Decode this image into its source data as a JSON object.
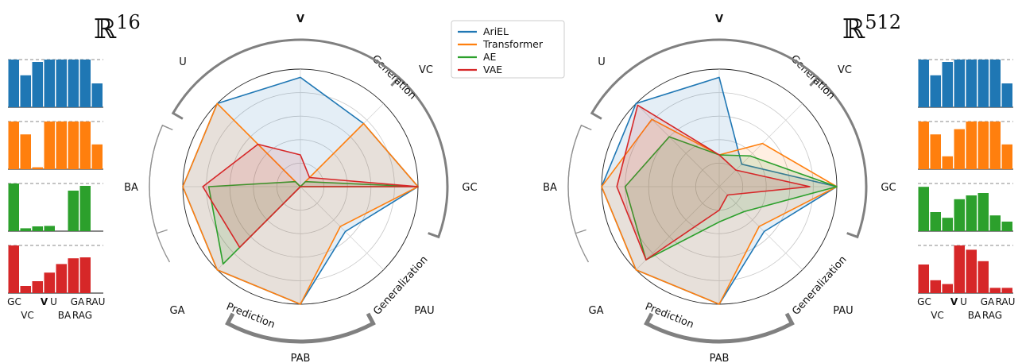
{
  "chart_data": {
    "type": "radar",
    "axes": [
      "V",
      "VC",
      "GC",
      "PAU",
      "PAB",
      "GA",
      "BA",
      "U"
    ],
    "highlight_axis": "V",
    "radial_range": [
      0,
      1
    ],
    "rings": 5,
    "grid": true,
    "legend": {
      "placement": "top-center",
      "entries": [
        {
          "name": "AriEL",
          "color": "#1f77b4"
        },
        {
          "name": "Transformer",
          "color": "#ff7f0e"
        },
        {
          "name": "AE",
          "color": "#2ca02c"
        },
        {
          "name": "VAE",
          "color": "#d62728"
        }
      ]
    },
    "groups": [
      {
        "name": "Generation"
      },
      {
        "name": "Generalization"
      },
      {
        "name": "Prediction"
      }
    ],
    "panels": [
      {
        "title_base": "ℝ",
        "title_exp": "16",
        "series": [
          {
            "name": "AriEL",
            "color": "#1f77b4",
            "values": [
              0.93,
              0.76,
              1.0,
              0.54,
              1.0,
              1.0,
              1.0,
              1.0
            ]
          },
          {
            "name": "Transformer",
            "color": "#ff7f0e",
            "values": [
              0.0,
              0.76,
              1.0,
              0.48,
              1.0,
              1.0,
              1.0,
              1.0
            ]
          },
          {
            "name": "AE",
            "color": "#2ca02c",
            "values": [
              0.0,
              0.06,
              1.0,
              0.0,
              0.0,
              0.93,
              0.78,
              0.06
            ]
          },
          {
            "name": "VAE",
            "color": "#d62728",
            "values": [
              0.27,
              0.11,
              1.0,
              0.0,
              0.0,
              0.73,
              0.83,
              0.51
            ]
          }
        ],
        "bar_panels": [
          {
            "name": "AriEL",
            "color": "#1f77b4",
            "values": [
              1.0,
              0.67,
              0.95,
              1.0,
              1.0,
              1.0,
              1.0,
              0.5
            ]
          },
          {
            "name": "Transformer",
            "color": "#ff7f0e",
            "values": [
              1.0,
              0.73,
              0.04,
              1.0,
              1.0,
              1.0,
              1.0,
              0.52
            ]
          },
          {
            "name": "AE",
            "color": "#2ca02c",
            "values": [
              1.0,
              0.06,
              0.1,
              0.11,
              0.0,
              0.85,
              0.95,
              0.0
            ]
          },
          {
            "name": "VAE",
            "color": "#d62728",
            "values": [
              1.0,
              0.15,
              0.25,
              0.43,
              0.61,
              0.73,
              0.75,
              0.0
            ]
          }
        ]
      },
      {
        "title_base": "ℝ",
        "title_exp": "512",
        "series": [
          {
            "name": "AriEL",
            "color": "#1f77b4",
            "values": [
              0.93,
              0.27,
              1.0,
              0.54,
              1.0,
              1.0,
              1.0,
              1.0
            ]
          },
          {
            "name": "Transformer",
            "color": "#ff7f0e",
            "values": [
              0.27,
              0.52,
              1.0,
              0.48,
              1.0,
              1.0,
              1.0,
              0.81
            ]
          },
          {
            "name": "AE",
            "color": "#2ca02c",
            "values": [
              0.27,
              0.37,
              1.0,
              0.3,
              0.3,
              0.88,
              0.8,
              0.6
            ]
          },
          {
            "name": "VAE",
            "color": "#d62728",
            "values": [
              0.27,
              0.2,
              0.77,
              0.1,
              0.2,
              0.88,
              0.87,
              0.98
            ]
          }
        ],
        "bar_panels": [
          {
            "name": "AriEL",
            "color": "#1f77b4",
            "values": [
              1.0,
              0.67,
              0.95,
              1.0,
              1.0,
              1.0,
              1.0,
              0.5
            ]
          },
          {
            "name": "Transformer",
            "color": "#ff7f0e",
            "values": [
              1.0,
              0.73,
              0.27,
              0.84,
              1.0,
              1.0,
              1.0,
              0.52
            ]
          },
          {
            "name": "AE",
            "color": "#2ca02c",
            "values": [
              0.93,
              0.4,
              0.28,
              0.67,
              0.75,
              0.8,
              0.33,
              0.2
            ]
          },
          {
            "name": "VAE",
            "color": "#d62728",
            "values": [
              0.6,
              0.27,
              0.19,
              1.0,
              0.91,
              0.67,
              0.11,
              0.11
            ]
          }
        ]
      }
    ],
    "bar_xlabels_top": [
      "GC",
      "V",
      "U",
      "GA",
      "RAU"
    ],
    "bar_xlabels_bottom": [
      "VC",
      "BA",
      "RAG"
    ]
  }
}
